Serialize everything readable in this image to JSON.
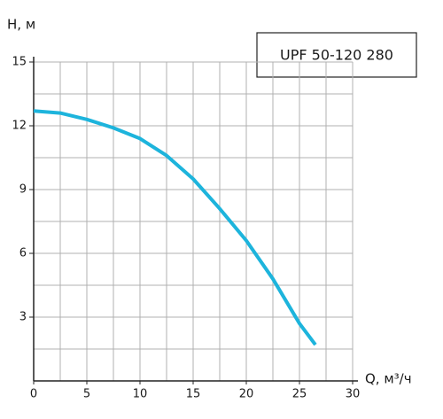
{
  "chart_data": {
    "type": "line",
    "annotation": "UPF 50-120 280",
    "y_label": "H, м",
    "x_label": "Q, м³/ч",
    "xlim": [
      0,
      30
    ],
    "xticks": [
      0,
      5,
      10,
      15,
      20,
      25,
      30
    ],
    "ylim": [
      0,
      15
    ],
    "yticks": [
      3,
      6,
      9,
      12,
      15
    ],
    "xgrid": [
      2.5,
      5,
      7.5,
      10,
      12.5,
      15,
      17.5,
      20,
      22.5,
      25,
      27.5,
      30
    ],
    "ygrid": [
      1.5,
      3,
      4.5,
      6,
      7.5,
      9,
      10.5,
      12,
      13.5,
      15
    ],
    "x": [
      0,
      2.5,
      5,
      7.5,
      10,
      12.5,
      15,
      17.5,
      20,
      22.5,
      25,
      26.5
    ],
    "series": [
      {
        "color": "#1db4dc",
        "values": [
          12.7,
          12.6,
          12.3,
          11.9,
          11.4,
          10.6,
          9.5,
          8.1,
          6.6,
          4.8,
          2.7,
          1.7
        ]
      }
    ]
  }
}
